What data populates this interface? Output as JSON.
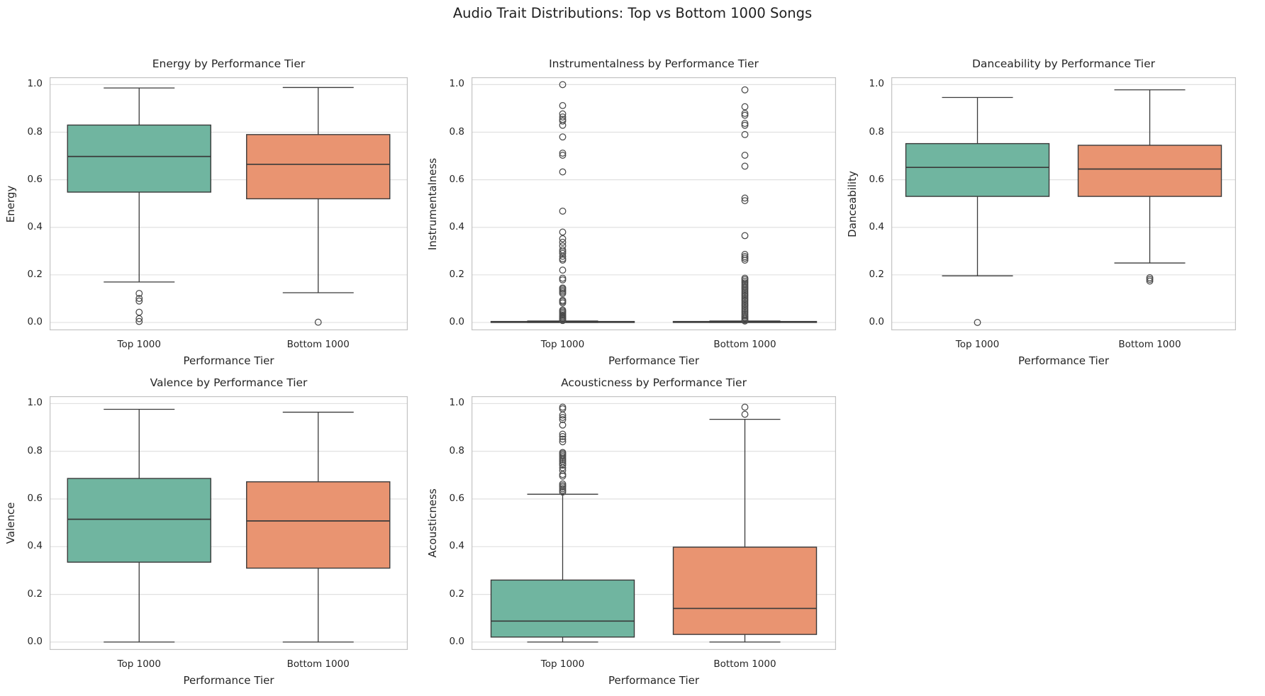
{
  "suptitle": "Audio Trait Distributions: Top vs Bottom 1000 Songs",
  "colors": {
    "top_tier": "#70b5a0",
    "bottom_tier": "#e99471",
    "box_edge": "#3a3a3a",
    "flier_edge": "#4a4a4a",
    "grid": "#e0e0e0",
    "spine": "#c3c3c3",
    "text": "#262626"
  },
  "chart_data": [
    {
      "type": "box",
      "title": "Energy by Performance Tier",
      "xlabel": "Performance Tier",
      "ylabel": "Energy",
      "categories": [
        "Top 1000",
        "Bottom 1000"
      ],
      "yticks": [
        0.0,
        0.2,
        0.4,
        0.6,
        0.8,
        1.0
      ],
      "yticklabels": [
        "0.0",
        "0.2",
        "0.4",
        "0.6",
        "0.8",
        "1.0"
      ],
      "ylim": [
        0,
        1
      ],
      "grid": true,
      "series": [
        {
          "name": "Top 1000",
          "tier": "top_tier",
          "whisker_low": 0.17,
          "q1": 0.548,
          "median": 0.698,
          "q3": 0.83,
          "whisker_high": 0.986,
          "outliers": [
            0.122,
            0.101,
            0.09,
            0.043,
            0.016,
            0.004
          ]
        },
        {
          "name": "Bottom 1000",
          "tier": "bottom_tier",
          "whisker_low": 0.125,
          "q1": 0.52,
          "median": 0.665,
          "q3": 0.79,
          "whisker_high": 0.988,
          "outliers": [
            0.001
          ]
        }
      ]
    },
    {
      "type": "box",
      "title": "Instrumentalness by Performance Tier",
      "xlabel": "Performance Tier",
      "ylabel": "Instrumentalness",
      "categories": [
        "Top 1000",
        "Bottom 1000"
      ],
      "yticks": [
        0.0,
        0.2,
        0.4,
        0.6,
        0.8,
        1.0
      ],
      "yticklabels": [
        "0.0",
        "0.2",
        "0.4",
        "0.6",
        "0.8",
        "1.0"
      ],
      "ylim": [
        0,
        1
      ],
      "grid": true,
      "series": [
        {
          "name": "Top 1000",
          "tier": "top_tier",
          "whisker_low": 0.0,
          "q1": 0.0,
          "median": 0.002,
          "q3": 0.004,
          "whisker_high": 0.006,
          "outliers": [
            1.0,
            0.912,
            0.877,
            0.864,
            0.854,
            0.847,
            0.829,
            0.78,
            0.712,
            0.703,
            0.633,
            0.468,
            0.38,
            0.352,
            0.337,
            0.322,
            0.305,
            0.297,
            0.29,
            0.278,
            0.268,
            0.262,
            0.22,
            0.186,
            0.179,
            0.145,
            0.14,
            0.134,
            0.128,
            0.122,
            0.093,
            0.088,
            0.082,
            0.052,
            0.047,
            0.042,
            0.036,
            0.03,
            0.025,
            0.02,
            0.016,
            0.012,
            0.008
          ]
        },
        {
          "name": "Bottom 1000",
          "tier": "bottom_tier",
          "whisker_low": 0.0,
          "q1": 0.0,
          "median": 0.002,
          "q3": 0.004,
          "whisker_high": 0.006,
          "outliers": [
            0.978,
            0.907,
            0.879,
            0.871,
            0.837,
            0.829,
            0.79,
            0.703,
            0.657,
            0.523,
            0.512,
            0.365,
            0.286,
            0.277,
            0.27,
            0.262,
            0.186,
            0.18,
            0.173,
            0.166,
            0.159,
            0.152,
            0.146,
            0.139,
            0.132,
            0.125,
            0.118,
            0.111,
            0.104,
            0.097,
            0.09,
            0.083,
            0.076,
            0.069,
            0.062,
            0.055,
            0.048,
            0.041,
            0.034,
            0.027,
            0.021,
            0.015,
            0.01,
            0.006
          ]
        }
      ]
    },
    {
      "type": "box",
      "title": "Danceability by Performance Tier",
      "xlabel": "Performance Tier",
      "ylabel": "Danceability",
      "categories": [
        "Top 1000",
        "Bottom 1000"
      ],
      "yticks": [
        0.0,
        0.2,
        0.4,
        0.6,
        0.8,
        1.0
      ],
      "yticklabels": [
        "0.0",
        "0.2",
        "0.4",
        "0.6",
        "0.8",
        "1.0"
      ],
      "ylim": [
        0,
        1
      ],
      "grid": true,
      "series": [
        {
          "name": "Top 1000",
          "tier": "top_tier",
          "whisker_low": 0.196,
          "q1": 0.53,
          "median": 0.652,
          "q3": 0.752,
          "whisker_high": 0.946,
          "outliers": [
            0.0
          ]
        },
        {
          "name": "Bottom 1000",
          "tier": "bottom_tier",
          "whisker_low": 0.25,
          "q1": 0.53,
          "median": 0.645,
          "q3": 0.745,
          "whisker_high": 0.978,
          "outliers": [
            0.188,
            0.181,
            0.174
          ]
        }
      ]
    },
    {
      "type": "box",
      "title": "Valence by Performance Tier",
      "xlabel": "Performance Tier",
      "ylabel": "Valence",
      "categories": [
        "Top 1000",
        "Bottom 1000"
      ],
      "yticks": [
        0.0,
        0.2,
        0.4,
        0.6,
        0.8,
        1.0
      ],
      "yticklabels": [
        "0.0",
        "0.2",
        "0.4",
        "0.6",
        "0.8",
        "1.0"
      ],
      "ylim": [
        0,
        1
      ],
      "grid": true,
      "series": [
        {
          "name": "Top 1000",
          "tier": "top_tier",
          "whisker_low": 0.0,
          "q1": 0.335,
          "median": 0.515,
          "q3": 0.686,
          "whisker_high": 0.976,
          "outliers": []
        },
        {
          "name": "Bottom 1000",
          "tier": "bottom_tier",
          "whisker_low": 0.0,
          "q1": 0.31,
          "median": 0.508,
          "q3": 0.672,
          "whisker_high": 0.964,
          "outliers": []
        }
      ]
    },
    {
      "type": "box",
      "title": "Acousticness by Performance Tier",
      "xlabel": "Performance Tier",
      "ylabel": "Acousticness",
      "categories": [
        "Top 1000",
        "Bottom 1000"
      ],
      "yticks": [
        0.0,
        0.2,
        0.4,
        0.6,
        0.8,
        1.0
      ],
      "yticklabels": [
        "0.0",
        "0.2",
        "0.4",
        "0.6",
        "0.8",
        "1.0"
      ],
      "ylim": [
        0,
        1
      ],
      "grid": true,
      "series": [
        {
          "name": "Top 1000",
          "tier": "top_tier",
          "whisker_low": 0.0,
          "q1": 0.021,
          "median": 0.088,
          "q3": 0.26,
          "whisker_high": 0.62,
          "outliers": [
            0.985,
            0.978,
            0.952,
            0.942,
            0.933,
            0.91,
            0.872,
            0.862,
            0.851,
            0.84,
            0.795,
            0.79,
            0.784,
            0.778,
            0.771,
            0.764,
            0.757,
            0.749,
            0.742,
            0.731,
            0.72,
            0.703,
            0.696,
            0.663,
            0.656,
            0.65,
            0.643,
            0.636,
            0.629
          ]
        },
        {
          "name": "Bottom 1000",
          "tier": "bottom_tier",
          "whisker_low": 0.0,
          "q1": 0.032,
          "median": 0.141,
          "q3": 0.398,
          "whisker_high": 0.934,
          "outliers": [
            0.985,
            0.955
          ]
        }
      ]
    }
  ]
}
